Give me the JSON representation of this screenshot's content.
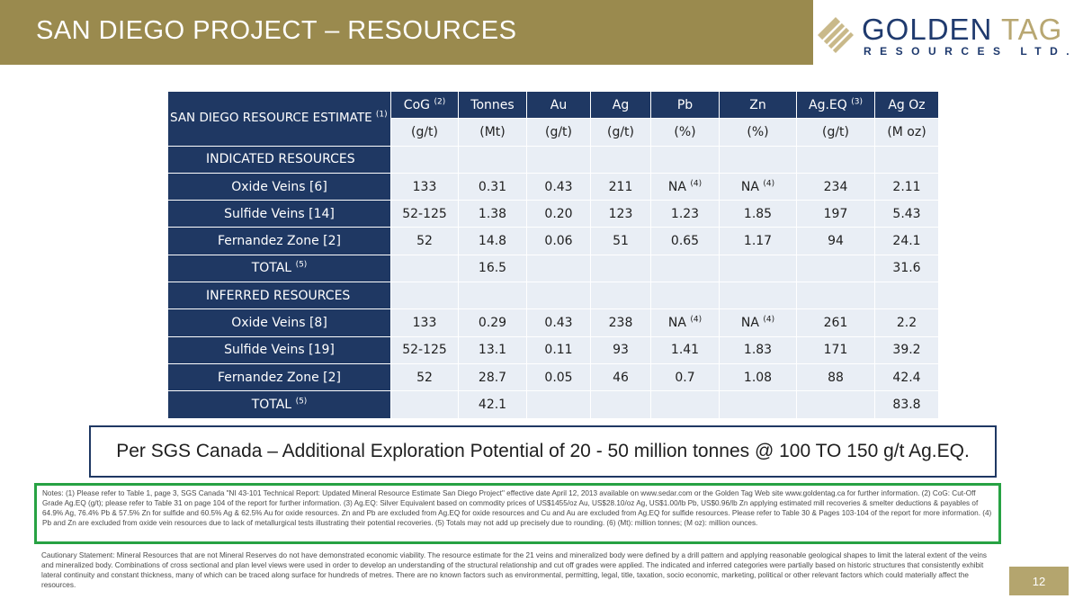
{
  "title": "SAN DIEGO PROJECT – RESOURCES",
  "logo": {
    "name_main": "GOLDEN ",
    "name_accent": "TAG",
    "sub": "RESOURCES LTD."
  },
  "table": {
    "corner_label": "SAN DIEGO RESOURCE ESTIMATE",
    "corner_sup": "(1)",
    "headers": [
      {
        "label": "CoG",
        "sup": "(2)",
        "unit": "(g/t)"
      },
      {
        "label": "Tonnes",
        "sup": "",
        "unit": "(Mt)"
      },
      {
        "label": "Au",
        "sup": "",
        "unit": "(g/t)"
      },
      {
        "label": "Ag",
        "sup": "",
        "unit": "(g/t)"
      },
      {
        "label": "Pb",
        "sup": "",
        "unit": "(%)"
      },
      {
        "label": "Zn",
        "sup": "",
        "unit": "(%)"
      },
      {
        "label": "Ag.EQ",
        "sup": "(3)",
        "unit": "(g/t)"
      },
      {
        "label": "Ag Oz",
        "sup": "",
        "unit": "(M oz)"
      }
    ],
    "indicated": {
      "section": "INDICATED RESOURCES",
      "rows": [
        {
          "label": "Oxide Veins [6]",
          "label_sup": "",
          "cells": [
            "133",
            "0.31",
            "0.43",
            "211",
            "NA",
            "NA",
            "234",
            "2.11"
          ],
          "cell_sups": [
            "",
            "",
            "",
            "",
            "(4)",
            "(4)",
            "",
            ""
          ]
        },
        {
          "label": "Sulfide Veins [14]",
          "label_sup": "",
          "cells": [
            "52-125",
            "1.38",
            "0.20",
            "123",
            "1.23",
            "1.85",
            "197",
            "5.43"
          ],
          "cell_sups": [
            "",
            "",
            "",
            "",
            "",
            "",
            "",
            ""
          ]
        },
        {
          "label": "Fernandez Zone [2]",
          "label_sup": "",
          "cells": [
            "52",
            "14.8",
            "0.06",
            "51",
            "0.65",
            "1.17",
            "94",
            "24.1"
          ],
          "cell_sups": [
            "",
            "",
            "",
            "",
            "",
            "",
            "",
            ""
          ]
        },
        {
          "label": "TOTAL",
          "label_sup": "(5)",
          "cells": [
            "",
            "16.5",
            "",
            "",
            "",
            "",
            "",
            "31.6"
          ],
          "cell_sups": [
            "",
            "",
            "",
            "",
            "",
            "",
            "",
            ""
          ]
        }
      ]
    },
    "inferred": {
      "section": "INFERRED RESOURCES",
      "rows": [
        {
          "label": "Oxide Veins [8]",
          "label_sup": "",
          "cells": [
            "133",
            "0.29",
            "0.43",
            "238",
            "NA",
            "NA",
            "261",
            "2.2"
          ],
          "cell_sups": [
            "",
            "",
            "",
            "",
            "(4)",
            "(4)",
            "",
            ""
          ]
        },
        {
          "label": "Sulfide Veins [19]",
          "label_sup": "",
          "cells": [
            "52-125",
            "13.1",
            "0.11",
            "93",
            "1.41",
            "1.83",
            "171",
            "39.2"
          ],
          "cell_sups": [
            "",
            "",
            "",
            "",
            "",
            "",
            "",
            ""
          ]
        },
        {
          "label": "Fernandez Zone [2]",
          "label_sup": "",
          "cells": [
            "52",
            "28.7",
            "0.05",
            "46",
            "0.7",
            "1.08",
            "88",
            "42.4"
          ],
          "cell_sups": [
            "",
            "",
            "",
            "",
            "",
            "",
            "",
            ""
          ]
        },
        {
          "label": "TOTAL",
          "label_sup": "(5)",
          "cells": [
            "",
            "42.1",
            "",
            "",
            "",
            "",
            "",
            "83.8"
          ],
          "cell_sups": [
            "",
            "",
            "",
            "",
            "",
            "",
            "",
            ""
          ]
        }
      ]
    }
  },
  "banner": "Per SGS Canada – Additional Exploration Potential of 20 - 50 million tonnes @ 100 TO 150 g/t Ag.EQ.",
  "notes": "Notes: (1) Please refer to Table 1, page 3, SGS Canada \"NI 43-101 Technical Report: Updated Mineral Resource Estimate San Diego Project\" effective date April 12, 2013 available on www.sedar.com or the Golden Tag Web site www.goldentag.ca for further information. (2) CoG: Cut-Off Grade Ag.EQ (g/t); please refer to Table 31 on page 104 of the report for further information. (3) Ag.EQ: Silver Equivalent based on commodity prices of US$1455/oz Au, US$28.10/oz Ag, US$1.00/lb Pb, US$0.96/lb Zn applying estimated mill recoveries & smelter deductions & payables of 64.9% Ag, 76.4% Pb & 57.5% Zn for sulfide and 60.5% Ag & 62.5% Au for oxide resources. Zn and Pb are excluded from Ag.EQ for oxide resources and Cu and Au are excluded from Ag.EQ for sulfide resources. Please refer to Table 30 & Pages 103-104 of the report for more information. (4) Pb and Zn are excluded from oxide vein resources due to lack of metallurgical tests illustrating their potential recoveries. (5) Totals may not add up precisely due to rounding. (6) (Mt): million tonnes; (M oz): million ounces.",
  "caution": "Cautionary Statement: Mineral Resources that are not Mineral Reserves do not have demonstrated economic viability. The resource estimate for the 21 veins and mineralized body were defined by a drill pattern and applying reasonable geological shapes to limit the lateral extent of the veins and mineralized body. Combinations of cross sectional and plan level views were used in order to develop an understanding of the structural relationship and cut off grades were applied. The indicated and inferred categories were partially based on historic structures that consistently exhibit lateral continuity and constant thickness, many of which can be traced along surface for hundreds of metres. There are no known factors such as environmental, permitting, legal, title, taxation, socio economic, marketing, political or other relevant factors which could materially affect the resources.",
  "page_number": "12",
  "colors": {
    "title_bar": "#9a8a4e",
    "table_dark": "#1f3863",
    "table_light": "#e9eef5",
    "notes_border": "#27a243",
    "page_badge": "#b4a56e"
  }
}
